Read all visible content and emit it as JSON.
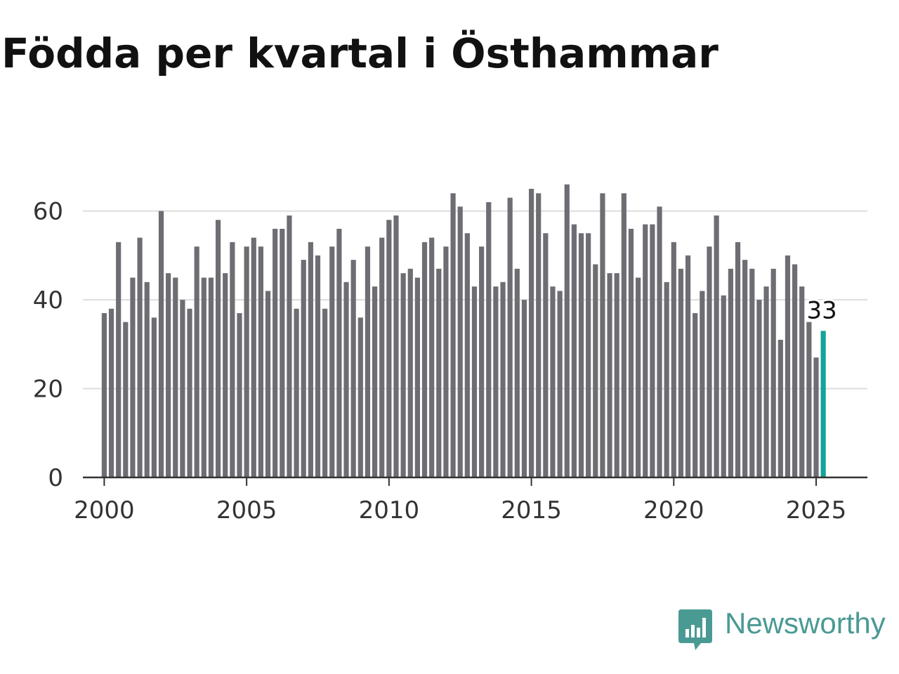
{
  "title": "Födda per kvartal i Östhammar",
  "brand": {
    "name": "Newsworthy",
    "color": "#4a9a94",
    "icon": "newsworthy-logo-icon"
  },
  "colors": {
    "bar": "#6e6d73",
    "highlight": "#14a39a",
    "grid": "#dddddd",
    "axis": "#333333",
    "text": "#333333"
  },
  "chart_data": {
    "type": "bar",
    "title": "Födda per kvartal i Östhammar",
    "xlabel": "",
    "ylabel": "",
    "ylim": [
      0,
      68
    ],
    "xlim": [
      1999.25,
      2026.8
    ],
    "yticks": [
      0,
      20,
      40,
      60
    ],
    "xticks": [
      2000,
      2005,
      2010,
      2015,
      2020,
      2025
    ],
    "grid": true,
    "x_start": "2000 Q1",
    "values": [
      37,
      38,
      53,
      35,
      45,
      54,
      44,
      36,
      60,
      46,
      45,
      40,
      38,
      52,
      45,
      45,
      58,
      46,
      53,
      37,
      52,
      54,
      52,
      42,
      56,
      56,
      59,
      38,
      49,
      53,
      50,
      38,
      52,
      56,
      44,
      49,
      36,
      52,
      43,
      54,
      58,
      59,
      46,
      47,
      45,
      53,
      54,
      47,
      52,
      64,
      61,
      55,
      43,
      52,
      62,
      43,
      44,
      63,
      47,
      40,
      65,
      64,
      55,
      43,
      42,
      66,
      57,
      55,
      55,
      48,
      64,
      46,
      46,
      64,
      56,
      45,
      57,
      57,
      61,
      44,
      53,
      47,
      50,
      37,
      42,
      52,
      59,
      41,
      47,
      53,
      49,
      47,
      40,
      43,
      47,
      31,
      50,
      48,
      43,
      35,
      27,
      33
    ],
    "highlight": {
      "label": "33",
      "value": 33
    }
  }
}
